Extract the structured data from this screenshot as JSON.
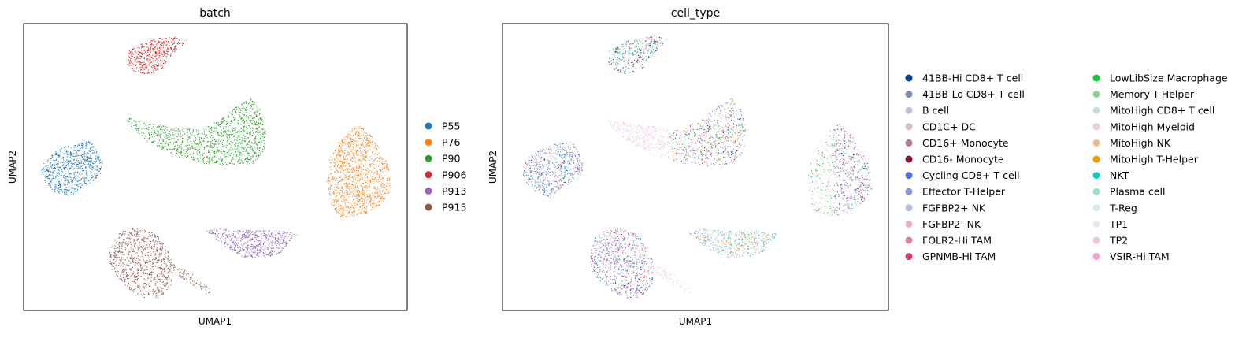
{
  "chart_data": [
    {
      "type": "scatter",
      "title": "batch",
      "xlabel": "UMAP1",
      "ylabel": "UMAP2",
      "grid": false,
      "ticks": false,
      "legend_position": "right-outside",
      "legend": [
        {
          "label": "P55",
          "color": "#1f77b4"
        },
        {
          "label": "P76",
          "color": "#ff7f0e"
        },
        {
          "label": "P90",
          "color": "#2ca02c"
        },
        {
          "label": "P906",
          "color": "#d62728"
        },
        {
          "label": "P913",
          "color": "#9467bd"
        },
        {
          "label": "P915",
          "color": "#8c564b"
        }
      ]
    },
    {
      "type": "scatter",
      "title": "cell_type",
      "xlabel": "UMAP1",
      "ylabel": "UMAP2",
      "grid": false,
      "ticks": false,
      "legend_position": "right-outside",
      "legend_columns": 2,
      "legend": [
        {
          "label": "41BB-Hi CD8+ T cell",
          "color": "#023fa5"
        },
        {
          "label": "41BB-Lo CD8+ T cell",
          "color": "#7d87b9"
        },
        {
          "label": "B cell",
          "color": "#bec1d4"
        },
        {
          "label": "CD1C+ DC",
          "color": "#d6bcc0"
        },
        {
          "label": "CD16+ Monocyte",
          "color": "#bb7784"
        },
        {
          "label": "CD16- Monocyte",
          "color": "#8e063b"
        },
        {
          "label": "Cycling CD8+ T cell",
          "color": "#4a6fe3"
        },
        {
          "label": "Effector T-Helper",
          "color": "#8595e1"
        },
        {
          "label": "FGFBP2+ NK",
          "color": "#b5bbe3"
        },
        {
          "label": "FGFBP2- NK",
          "color": "#e6afb9"
        },
        {
          "label": "FOLR2-Hi TAM",
          "color": "#e07b91"
        },
        {
          "label": "GPNMB-Hi TAM",
          "color": "#d33f6a"
        },
        {
          "label": "LowLibSize Macrophage",
          "color": "#11c638"
        },
        {
          "label": "Memory T-Helper",
          "color": "#8dd593"
        },
        {
          "label": "MitoHigh CD8+ T cell",
          "color": "#c6dec7"
        },
        {
          "label": "MitoHigh Myeloid",
          "color": "#ead3c6"
        },
        {
          "label": "MitoHigh NK",
          "color": "#f0b98d"
        },
        {
          "label": "MitoHigh T-Helper",
          "color": "#ef9708"
        },
        {
          "label": "NKT",
          "color": "#0fcfc0"
        },
        {
          "label": "Plasma cell",
          "color": "#9cded6"
        },
        {
          "label": "T-Reg",
          "color": "#d5eae7"
        },
        {
          "label": "TP1",
          "color": "#f3e1eb"
        },
        {
          "label": "TP2",
          "color": "#f6c4e1"
        },
        {
          "label": "VSIR-Hi TAM",
          "color": "#f79cd4"
        }
      ]
    }
  ]
}
